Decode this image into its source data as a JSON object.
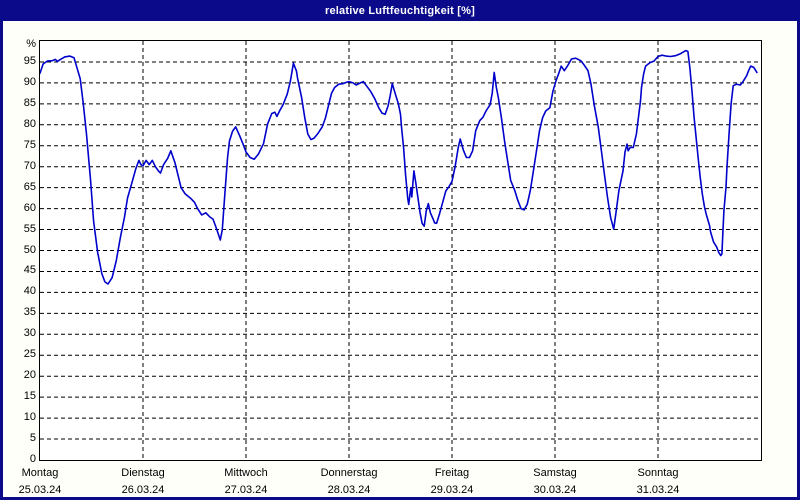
{
  "window": {
    "title": "relative Luftfeuchtigkeit [%]",
    "title_bar_color": "#0a0a8a",
    "border_color": "#0a0a8a",
    "content_background": "#fffffa"
  },
  "chart_data": {
    "type": "line",
    "title": "relative Luftfeuchtigkeit [%]",
    "ylabel": "%",
    "xlabel": "",
    "ylim": [
      0,
      100
    ],
    "yticks": [
      0,
      5,
      10,
      15,
      20,
      25,
      30,
      35,
      40,
      45,
      50,
      55,
      60,
      65,
      70,
      75,
      80,
      85,
      90,
      95
    ],
    "grid": "dashed",
    "grid_color": "#000000",
    "line_color": "#0000cc",
    "legend": "none",
    "days": [
      {
        "name": "Montag",
        "date": "25.03.24"
      },
      {
        "name": "Dienstag",
        "date": "26.03.24"
      },
      {
        "name": "Mittwoch",
        "date": "27.03.24"
      },
      {
        "name": "Donnerstag",
        "date": "28.03.24"
      },
      {
        "name": "Freitag",
        "date": "29.03.24"
      },
      {
        "name": "Samstag",
        "date": "30.03.24"
      },
      {
        "name": "Sonntag",
        "date": "31.03.24"
      }
    ],
    "series": [
      {
        "name": "relative Luftfeuchtigkeit",
        "unit": "%",
        "x_unit": "days since Monday 00:00",
        "points": [
          [
            0.0,
            92.3
          ],
          [
            0.03,
            94.5
          ],
          [
            0.07,
            95.2
          ],
          [
            0.12,
            95.3
          ],
          [
            0.15,
            95.6
          ],
          [
            0.17,
            95.1
          ],
          [
            0.19,
            95.5
          ],
          [
            0.24,
            96.2
          ],
          [
            0.29,
            96.4
          ],
          [
            0.33,
            96.0
          ],
          [
            0.36,
            93.5
          ],
          [
            0.39,
            91.0
          ],
          [
            0.42,
            85.0
          ],
          [
            0.45,
            78.0
          ],
          [
            0.49,
            67.0
          ],
          [
            0.52,
            57.0
          ],
          [
            0.56,
            49.5
          ],
          [
            0.6,
            44.5
          ],
          [
            0.63,
            42.5
          ],
          [
            0.66,
            42.0
          ],
          [
            0.7,
            43.5
          ],
          [
            0.74,
            47.5
          ],
          [
            0.78,
            53.0
          ],
          [
            0.82,
            58.0
          ],
          [
            0.85,
            62.5
          ],
          [
            0.89,
            66.0
          ],
          [
            0.93,
            69.5
          ],
          [
            0.96,
            71.5
          ],
          [
            0.98,
            70.5
          ],
          [
            1.0,
            70.2
          ],
          [
            1.03,
            71.5
          ],
          [
            1.06,
            70.5
          ],
          [
            1.09,
            71.5
          ],
          [
            1.12,
            70.0
          ],
          [
            1.15,
            69.0
          ],
          [
            1.17,
            68.5
          ],
          [
            1.2,
            70.5
          ],
          [
            1.24,
            72.0
          ],
          [
            1.27,
            73.8
          ],
          [
            1.31,
            71.0
          ],
          [
            1.34,
            68.0
          ],
          [
            1.37,
            65.0
          ],
          [
            1.41,
            63.5
          ],
          [
            1.46,
            62.5
          ],
          [
            1.5,
            61.5
          ],
          [
            1.53,
            60.0
          ],
          [
            1.57,
            58.5
          ],
          [
            1.61,
            59.0
          ],
          [
            1.65,
            58.0
          ],
          [
            1.68,
            57.5
          ],
          [
            1.71,
            55.5
          ],
          [
            1.73,
            54.0
          ],
          [
            1.75,
            52.5
          ],
          [
            1.77,
            55.0
          ],
          [
            1.79,
            62.0
          ],
          [
            1.82,
            72.0
          ],
          [
            1.84,
            76.2
          ],
          [
            1.87,
            78.5
          ],
          [
            1.9,
            79.5
          ],
          [
            1.94,
            77.3
          ],
          [
            1.97,
            75.5
          ],
          [
            2.0,
            73.5
          ],
          [
            2.04,
            72.2
          ],
          [
            2.08,
            71.8
          ],
          [
            2.12,
            73.0
          ],
          [
            2.17,
            75.5
          ],
          [
            2.21,
            80.2
          ],
          [
            2.25,
            82.7
          ],
          [
            2.28,
            83.0
          ],
          [
            2.3,
            82.0
          ],
          [
            2.33,
            83.5
          ],
          [
            2.36,
            84.8
          ],
          [
            2.4,
            87.3
          ],
          [
            2.43,
            90.3
          ],
          [
            2.46,
            94.7
          ],
          [
            2.49,
            92.8
          ],
          [
            2.5,
            91.2
          ],
          [
            2.54,
            86.5
          ],
          [
            2.57,
            81.8
          ],
          [
            2.6,
            77.8
          ],
          [
            2.63,
            76.5
          ],
          [
            2.66,
            76.8
          ],
          [
            2.7,
            78.0
          ],
          [
            2.74,
            79.5
          ],
          [
            2.77,
            81.5
          ],
          [
            2.8,
            84.5
          ],
          [
            2.83,
            87.5
          ],
          [
            2.86,
            88.9
          ],
          [
            2.9,
            89.7
          ],
          [
            2.94,
            89.8
          ],
          [
            2.98,
            90.2
          ],
          [
            3.0,
            90.3
          ],
          [
            3.04,
            90.0
          ],
          [
            3.07,
            89.5
          ],
          [
            3.11,
            90.0
          ],
          [
            3.14,
            90.3
          ],
          [
            3.17,
            89.3
          ],
          [
            3.21,
            88.0
          ],
          [
            3.25,
            86.2
          ],
          [
            3.29,
            84.0
          ],
          [
            3.32,
            82.8
          ],
          [
            3.35,
            82.5
          ],
          [
            3.38,
            84.5
          ],
          [
            3.4,
            87.0
          ],
          [
            3.42,
            89.8
          ],
          [
            3.45,
            87.3
          ],
          [
            3.48,
            85.0
          ],
          [
            3.5,
            82.5
          ],
          [
            3.51,
            79.5
          ],
          [
            3.53,
            74.5
          ],
          [
            3.55,
            68.0
          ],
          [
            3.57,
            62.5
          ],
          [
            3.58,
            61.0
          ],
          [
            3.6,
            65.0
          ],
          [
            3.61,
            62.8
          ],
          [
            3.63,
            69.0
          ],
          [
            3.65,
            66.0
          ],
          [
            3.67,
            62.5
          ],
          [
            3.69,
            59.0
          ],
          [
            3.71,
            56.5
          ],
          [
            3.73,
            55.8
          ],
          [
            3.75,
            59.5
          ],
          [
            3.77,
            61.2
          ],
          [
            3.79,
            59.0
          ],
          [
            3.82,
            57.3
          ],
          [
            3.83,
            56.6
          ],
          [
            3.85,
            56.5
          ],
          [
            3.88,
            58.8
          ],
          [
            3.91,
            61.5
          ],
          [
            3.94,
            64.2
          ],
          [
            3.97,
            65.2
          ],
          [
            4.0,
            66.5
          ],
          [
            4.03,
            70.0
          ],
          [
            4.06,
            74.5
          ],
          [
            4.08,
            76.6
          ],
          [
            4.11,
            74.0
          ],
          [
            4.14,
            72.2
          ],
          [
            4.17,
            72.2
          ],
          [
            4.2,
            73.8
          ],
          [
            4.23,
            78.6
          ],
          [
            4.27,
            81.0
          ],
          [
            4.3,
            81.8
          ],
          [
            4.33,
            83.3
          ],
          [
            4.37,
            84.8
          ],
          [
            4.39,
            87.5
          ],
          [
            4.41,
            92.5
          ],
          [
            4.43,
            89.0
          ],
          [
            4.45,
            86.4
          ],
          [
            4.48,
            81.7
          ],
          [
            4.51,
            76.2
          ],
          [
            4.54,
            71.4
          ],
          [
            4.57,
            66.7
          ],
          [
            4.61,
            64.3
          ],
          [
            4.64,
            61.9
          ],
          [
            4.67,
            60.0
          ],
          [
            4.7,
            59.7
          ],
          [
            4.73,
            61.0
          ],
          [
            4.76,
            64.3
          ],
          [
            4.79,
            69.0
          ],
          [
            4.82,
            73.8
          ],
          [
            4.85,
            78.6
          ],
          [
            4.88,
            81.7
          ],
          [
            4.91,
            83.3
          ],
          [
            4.95,
            84.1
          ],
          [
            4.98,
            88.0
          ],
          [
            5.01,
            90.5
          ],
          [
            5.04,
            92.5
          ],
          [
            5.06,
            94.0
          ],
          [
            5.09,
            92.9
          ],
          [
            5.12,
            94.0
          ],
          [
            5.16,
            95.7
          ],
          [
            5.2,
            95.9
          ],
          [
            5.25,
            95.3
          ],
          [
            5.28,
            94.4
          ],
          [
            5.32,
            92.9
          ],
          [
            5.35,
            89.7
          ],
          [
            5.38,
            84.9
          ],
          [
            5.42,
            79.4
          ],
          [
            5.45,
            73.8
          ],
          [
            5.48,
            68.2
          ],
          [
            5.51,
            62.7
          ],
          [
            5.54,
            57.9
          ],
          [
            5.57,
            55.1
          ],
          [
            5.59,
            58.7
          ],
          [
            5.62,
            64.3
          ],
          [
            5.66,
            69.0
          ],
          [
            5.68,
            73.5
          ],
          [
            5.7,
            75.4
          ],
          [
            5.71,
            73.8
          ],
          [
            5.73,
            74.6
          ],
          [
            5.76,
            74.6
          ],
          [
            5.79,
            77.8
          ],
          [
            5.81,
            81.7
          ],
          [
            5.83,
            85.7
          ],
          [
            5.84,
            88.9
          ],
          [
            5.86,
            92.1
          ],
          [
            5.88,
            94.0
          ],
          [
            5.92,
            94.8
          ],
          [
            5.96,
            95.2
          ],
          [
            6.0,
            96.3
          ],
          [
            6.04,
            96.6
          ],
          [
            6.08,
            96.4
          ],
          [
            6.12,
            96.3
          ],
          [
            6.17,
            96.5
          ],
          [
            6.22,
            97.0
          ],
          [
            6.27,
            97.7
          ],
          [
            6.29,
            97.5
          ],
          [
            6.31,
            93.5
          ],
          [
            6.33,
            88.0
          ],
          [
            6.35,
            82.0
          ],
          [
            6.37,
            77.0
          ],
          [
            6.39,
            72.0
          ],
          [
            6.41,
            67.5
          ],
          [
            6.43,
            63.5
          ],
          [
            6.45,
            60.5
          ],
          [
            6.47,
            58.5
          ],
          [
            6.5,
            56.0
          ],
          [
            6.51,
            54.5
          ],
          [
            6.54,
            52.0
          ],
          [
            6.57,
            50.8
          ],
          [
            6.59,
            49.5
          ],
          [
            6.61,
            48.8
          ],
          [
            6.62,
            49.2
          ],
          [
            6.64,
            59.5
          ],
          [
            6.66,
            65.1
          ],
          [
            6.67,
            70.0
          ],
          [
            6.69,
            78.0
          ],
          [
            6.71,
            85.0
          ],
          [
            6.73,
            89.3
          ],
          [
            6.76,
            89.7
          ],
          [
            6.8,
            89.5
          ],
          [
            6.83,
            90.5
          ],
          [
            6.86,
            91.7
          ],
          [
            6.88,
            92.9
          ],
          [
            6.9,
            94.0
          ],
          [
            6.93,
            93.7
          ],
          [
            6.96,
            92.5
          ]
        ]
      }
    ]
  }
}
